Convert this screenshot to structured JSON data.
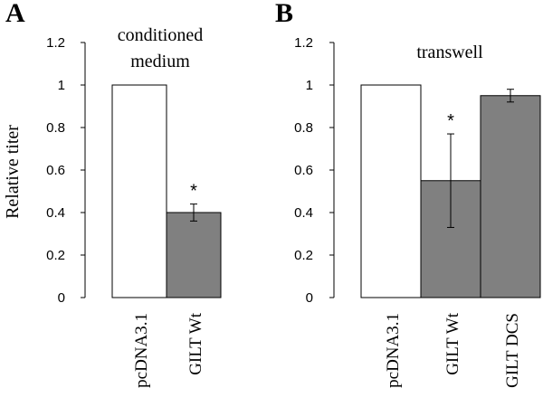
{
  "chart_data": [
    {
      "type": "bar",
      "panel": "A",
      "title": [
        "conditioned",
        "medium"
      ],
      "ylabel": "Relative titer",
      "xlabel": "",
      "ylim": [
        0,
        1.2
      ],
      "yticks": [
        "0",
        "0.2",
        "0.4",
        "0.6",
        "0.8",
        "1",
        "1.2"
      ],
      "categories": [
        "pcDNA3.1",
        "GILT Wt"
      ],
      "values": [
        1.0,
        0.4
      ],
      "errors": [
        null,
        0.04
      ],
      "fills": [
        "#ffffff",
        "#808080"
      ],
      "annotations": [
        "",
        "*"
      ]
    },
    {
      "type": "bar",
      "panel": "B",
      "title": [
        "transwell"
      ],
      "ylabel": "",
      "xlabel": "",
      "ylim": [
        0,
        1.2
      ],
      "yticks": [
        "0",
        "0.2",
        "0.4",
        "0.6",
        "0.8",
        "1",
        "1.2"
      ],
      "categories": [
        "pcDNA3.1",
        "GILT Wt",
        "GILT DCS"
      ],
      "values": [
        1.0,
        0.55,
        0.95
      ],
      "errors": [
        null,
        0.22,
        0.03
      ],
      "fills": [
        "#ffffff",
        "#808080",
        "#808080"
      ],
      "annotations": [
        "",
        "*",
        ""
      ]
    }
  ]
}
